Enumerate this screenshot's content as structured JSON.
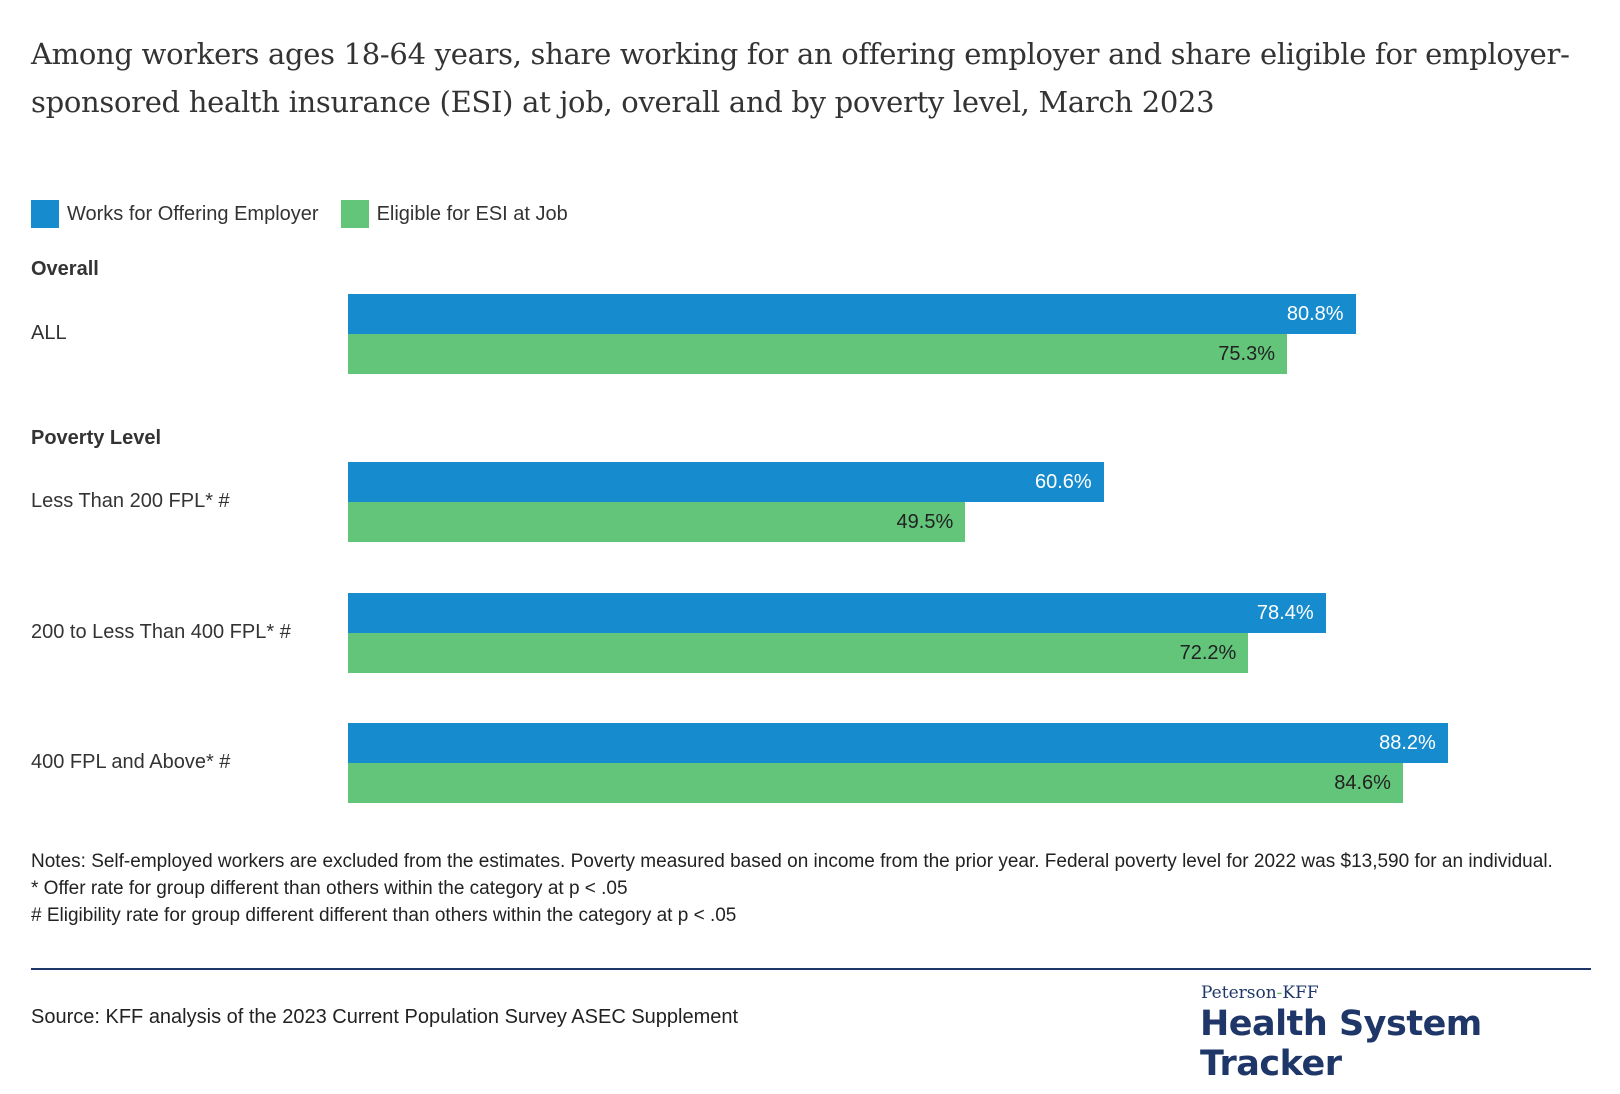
{
  "title": "Among workers ages 18-64 years, share working for an offering employer and share eligible for employer-sponsored health insurance (ESI) at job, overall and by poverty level, March 2023",
  "colors": {
    "offering": "#168bce",
    "eligible": "#63c57a"
  },
  "chart_data": {
    "type": "bar",
    "orientation": "horizontal",
    "title": "Among workers ages 18-64 years, share working for an offering employer and share eligible for employer-sponsored health insurance (ESI) at job, overall and by poverty level, March 2023",
    "legend_placement": "top-left",
    "grid": false,
    "xlim": [
      0,
      100
    ],
    "sections": [
      {
        "label": "Overall",
        "categories": [
          "ALL"
        ]
      },
      {
        "label": "Poverty Level",
        "categories": [
          "Less Than 200 FPL* #",
          "200 to Less Than 400 FPL* #",
          "400 FPL and Above* #"
        ]
      }
    ],
    "categories": [
      "ALL",
      "Less Than 200 FPL* #",
      "200 to Less Than 400 FPL* #",
      "400 FPL and Above* #"
    ],
    "series": [
      {
        "name": "Works for Offering Employer",
        "values": [
          80.8,
          60.6,
          78.4,
          88.2
        ],
        "labels": [
          "80.8%",
          "60.6%",
          "78.4%",
          "88.2%"
        ]
      },
      {
        "name": "Eligible for ESI at Job",
        "values": [
          75.3,
          49.5,
          72.2,
          84.6
        ],
        "labels": [
          "75.3%",
          "49.5%",
          "72.2%",
          "84.6%"
        ]
      }
    ]
  },
  "notes": [
    "Notes: Self-employed workers are excluded from the estimates. Poverty measured based on income from the prior year. Federal poverty level for 2022 was $13,590 for an individual.",
    "* Offer rate for group different than others within the category at p < .05",
    "# Eligibility rate for group different different than others within the category at p < .05"
  ],
  "source": "Source: KFF analysis of the 2023 Current Population Survey ASEC Supplement",
  "logo": {
    "top_a": "Peterson",
    "dash": "-",
    "top_b": "KFF",
    "main": "Health System Tracker"
  }
}
